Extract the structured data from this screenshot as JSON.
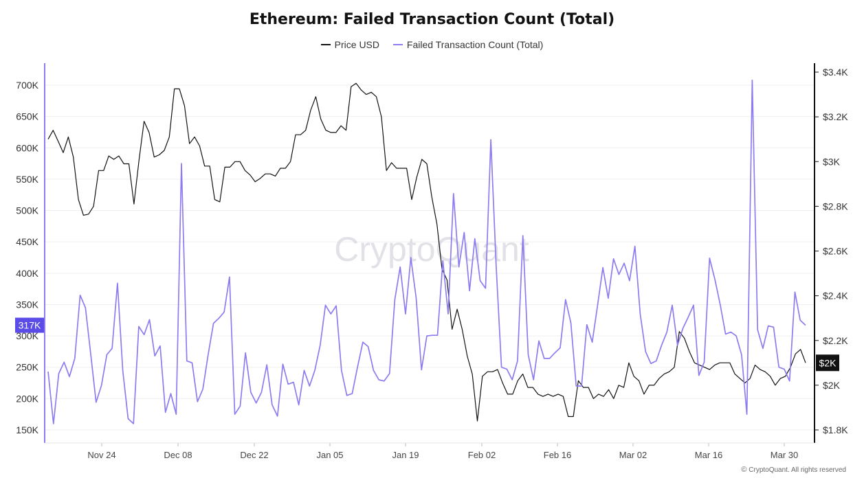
{
  "chart_data": {
    "type": "line",
    "title": "Ethereum: Failed Transaction Count (Total)",
    "watermark": "CryptoQuant",
    "footer": "CryptoQuant. All rights reserved",
    "footer_symbol": "©",
    "grid": true,
    "legend_position": "top-center",
    "x_ticks": [
      "Nov 24",
      "Dec 08",
      "Dec 22",
      "Jan 05",
      "Jan 19",
      "Feb 02",
      "Feb 16",
      "Mar 02",
      "Mar 16",
      "Mar 30"
    ],
    "x_start": "Nov 16",
    "x_end": "Apr 03",
    "left_axis": {
      "ticks": [
        "150K",
        "200K",
        "250K",
        "300K",
        "350K",
        "400K",
        "450K",
        "500K",
        "550K",
        "600K",
        "650K",
        "700K"
      ],
      "range": [
        140000,
        735000
      ],
      "color": "#8b7cf0"
    },
    "right_axis": {
      "ticks": [
        "$1.8K",
        "$2K",
        "$2.2K",
        "$2.4K",
        "$2.6K",
        "$2.8K",
        "$3K",
        "$3.2K",
        "$3.4K"
      ],
      "range": [
        1760,
        3480
      ],
      "color": "#111111"
    },
    "current_labels": {
      "left": "317K",
      "right": "$2K"
    },
    "series": [
      {
        "name": "Price USD",
        "axis": "right",
        "color": "#111111",
        "values": [
          3100,
          3140,
          3090,
          3040,
          3110,
          3020,
          2830,
          2760,
          2765,
          2800,
          2960,
          2960,
          3025,
          3010,
          3025,
          2990,
          2990,
          2810,
          3005,
          3180,
          3130,
          3020,
          3030,
          3050,
          3110,
          3325,
          3325,
          3250,
          3080,
          3110,
          3070,
          2980,
          2980,
          2830,
          2820,
          2975,
          2975,
          3000,
          3000,
          2960,
          2940,
          2910,
          2925,
          2945,
          2945,
          2935,
          2970,
          2970,
          3000,
          3120,
          3120,
          3140,
          3230,
          3290,
          3190,
          3140,
          3130,
          3130,
          3160,
          3140,
          3335,
          3350,
          3320,
          3300,
          3310,
          3290,
          3200,
          2960,
          2995,
          2970,
          2970,
          2970,
          2830,
          2930,
          3010,
          2990,
          2840,
          2720,
          2520,
          2470,
          2250,
          2340,
          2250,
          2130,
          2050,
          1840,
          2040,
          2060,
          2060,
          2070,
          2010,
          1960,
          1960,
          2020,
          2050,
          1990,
          1990,
          1960,
          1950,
          1960,
          1950,
          1960,
          1950,
          1860,
          1860,
          2020,
          1990,
          1990,
          1940,
          1960,
          1950,
          1980,
          1940,
          2000,
          1990,
          2100,
          2040,
          2020,
          1960,
          2000,
          2000,
          2030,
          2050,
          2060,
          2080,
          2240,
          2210,
          2150,
          2100,
          2090,
          2080,
          2070,
          2090,
          2100,
          2100,
          2100,
          2050,
          2030,
          2010,
          2030,
          2090,
          2070,
          2060,
          2040,
          2000,
          2030,
          2040,
          2080,
          2140,
          2160,
          2100
        ]
      },
      {
        "name": "Failed Transaction Count (Total)",
        "axis": "left",
        "color": "#8b7cf0",
        "values": [
          243000,
          160000,
          240000,
          258000,
          235000,
          264000,
          365000,
          345000,
          270000,
          194000,
          221000,
          270000,
          280000,
          384000,
          245000,
          168000,
          160000,
          315000,
          302000,
          326000,
          268000,
          284000,
          178000,
          208000,
          175000,
          575000,
          260000,
          257000,
          195000,
          215000,
          270000,
          320000,
          328000,
          338000,
          394000,
          175000,
          188000,
          273000,
          210000,
          193000,
          210000,
          254000,
          190000,
          172000,
          255000,
          223000,
          226000,
          190000,
          245000,
          220000,
          245000,
          285000,
          349000,
          335000,
          348000,
          245000,
          205000,
          208000,
          250000,
          290000,
          283000,
          245000,
          230000,
          228000,
          240000,
          358000,
          410000,
          335000,
          425000,
          360000,
          246000,
          300000,
          301000,
          301000,
          420000,
          335000,
          527000,
          410000,
          465000,
          372000,
          455000,
          388000,
          376000,
          613000,
          410000,
          250000,
          247000,
          230000,
          260000,
          460000,
          270000,
          230000,
          292000,
          264000,
          264000,
          273000,
          281000,
          358000,
          321000,
          220000,
          220000,
          318000,
          290000,
          348000,
          409000,
          360000,
          423000,
          398000,
          416000,
          388000,
          443000,
          335000,
          275000,
          256000,
          260000,
          285000,
          306000,
          349000,
          285000,
          312000,
          330000,
          349000,
          237000,
          258000,
          424000,
          390000,
          350000,
          303000,
          306000,
          300000,
          270000,
          175000,
          708000,
          310000,
          280000,
          316000,
          314000,
          250000,
          247000,
          228000,
          370000,
          325000,
          317000
        ]
      }
    ]
  }
}
